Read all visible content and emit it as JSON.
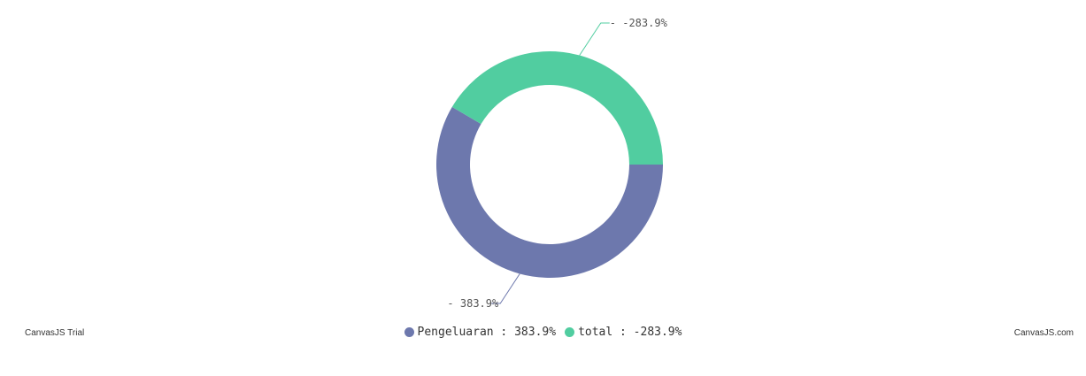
{
  "chart_data": {
    "type": "pie",
    "donut": true,
    "slices": [
      {
        "name": "Pengeluaran",
        "value": 383.9,
        "index_label": "- 383.9%",
        "legend_label": "Pengeluaran : 383.9%",
        "color": "#6d78ad"
      },
      {
        "name": "total",
        "value": -283.9,
        "index_label": "- -283.9%",
        "legend_label": "total : -283.9%",
        "color": "#51cda0"
      }
    ],
    "legend_placement": "bottom-center"
  },
  "credits": {
    "left": "CanvasJS Trial",
    "right": "CanvasJS.com"
  }
}
